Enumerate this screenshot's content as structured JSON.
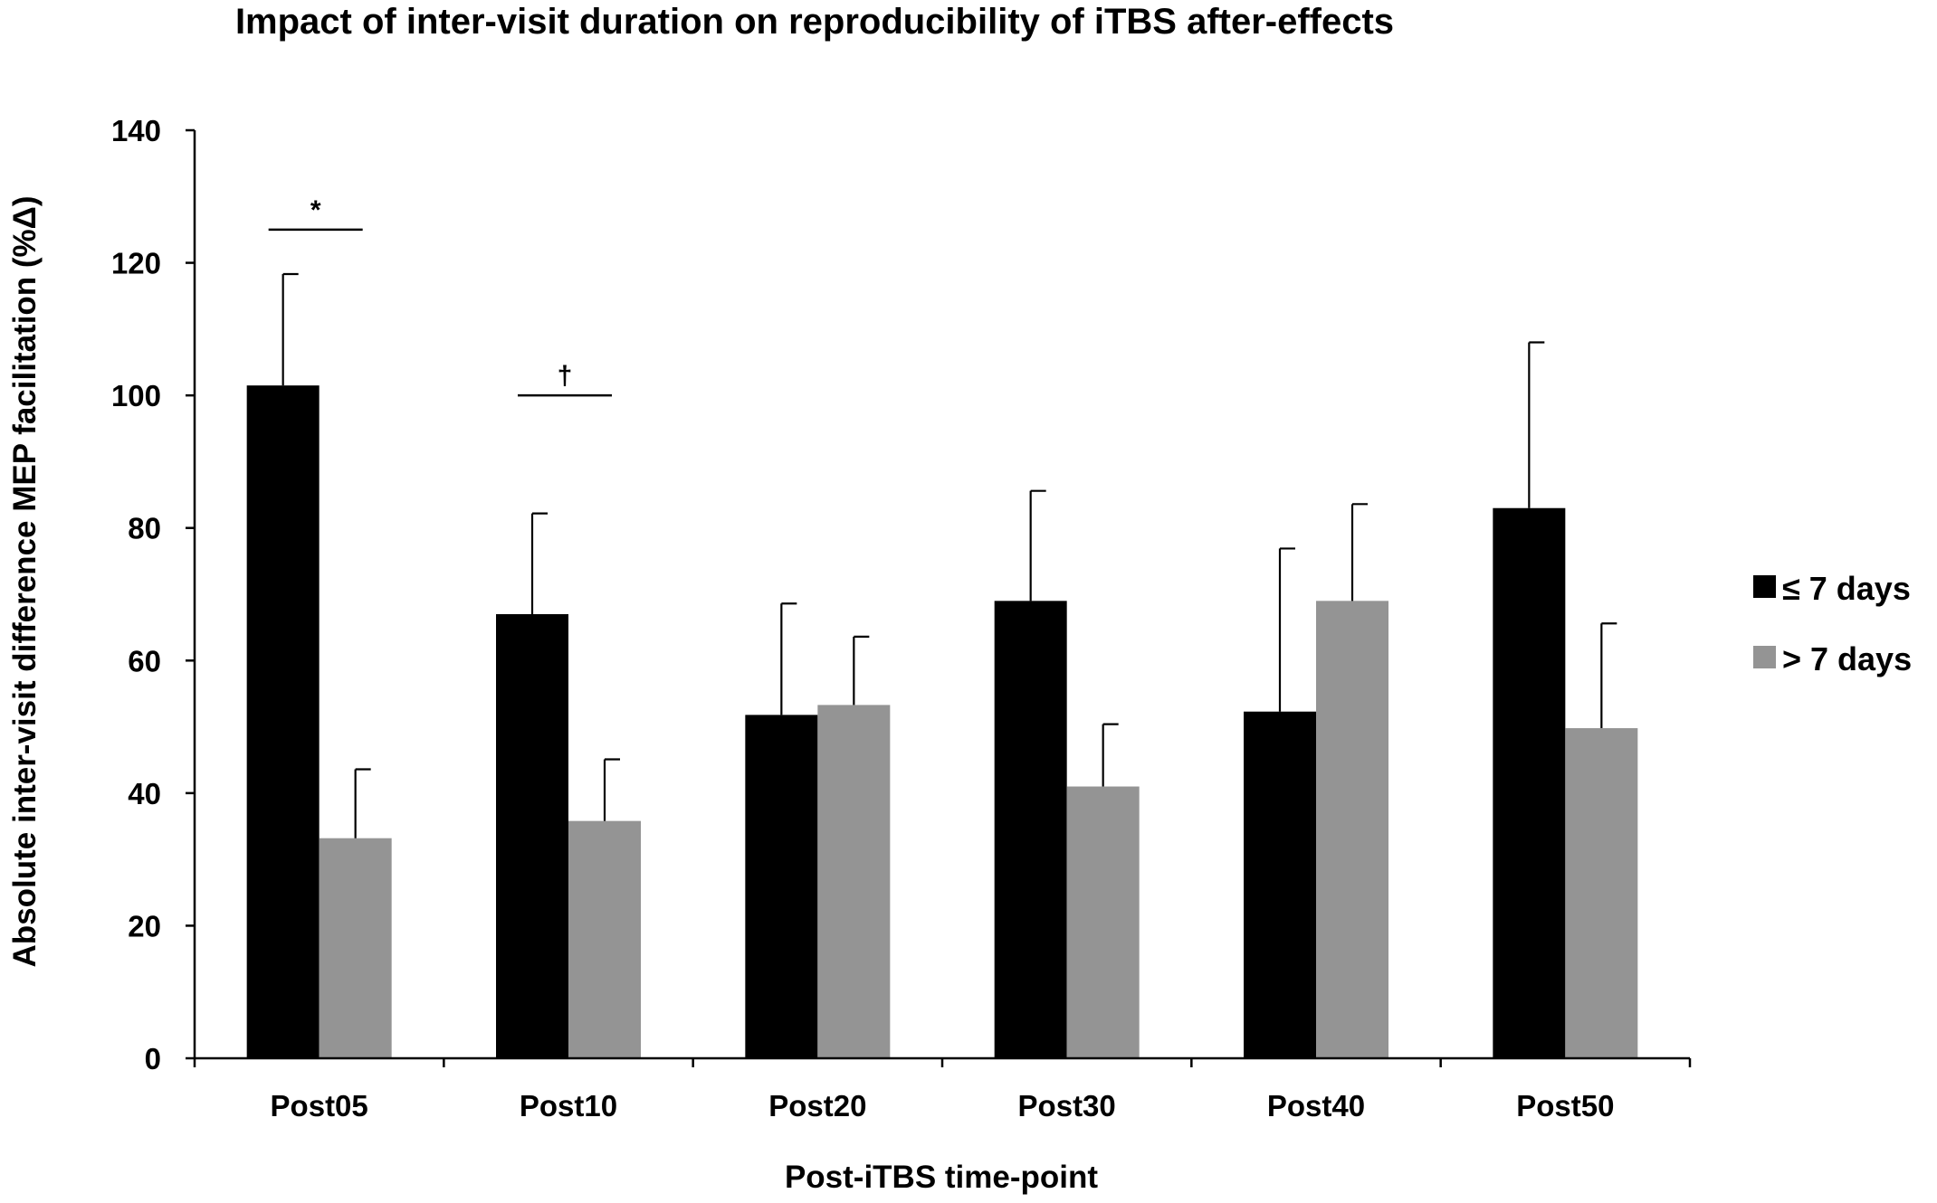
{
  "chart_data": {
    "type": "bar",
    "title": "Impact of inter-visit duration on reproducibility of iTBS after-effects",
    "xlabel": "Post-iTBS time-point",
    "ylabel": "Absolute inter-visit difference MEP facilitation (%Δ)",
    "ylim": [
      0,
      140
    ],
    "yticks": [
      0,
      20,
      40,
      60,
      80,
      100,
      120,
      140
    ],
    "categories": [
      "Post05",
      "Post10",
      "Post20",
      "Post30",
      "Post40",
      "Post50"
    ],
    "series": [
      {
        "name": "≤ 7 days",
        "color": "#000000",
        "values": [
          101.5,
          67,
          51.8,
          69,
          52.3,
          83
        ],
        "errors": [
          16.8,
          15.2,
          16.8,
          16.6,
          24.6,
          25.0
        ]
      },
      {
        "name": "> 7 days",
        "color": "#949494",
        "values": [
          33.2,
          35.8,
          53.3,
          41,
          69,
          49.8
        ],
        "errors": [
          10.4,
          9.3,
          10.3,
          9.4,
          14.6,
          15.8
        ]
      }
    ],
    "annotations": [
      {
        "category": "Post05",
        "symbol": "*",
        "level": 125
      },
      {
        "category": "Post10",
        "symbol": "†",
        "level": 100
      }
    ],
    "legend_position": "right"
  }
}
